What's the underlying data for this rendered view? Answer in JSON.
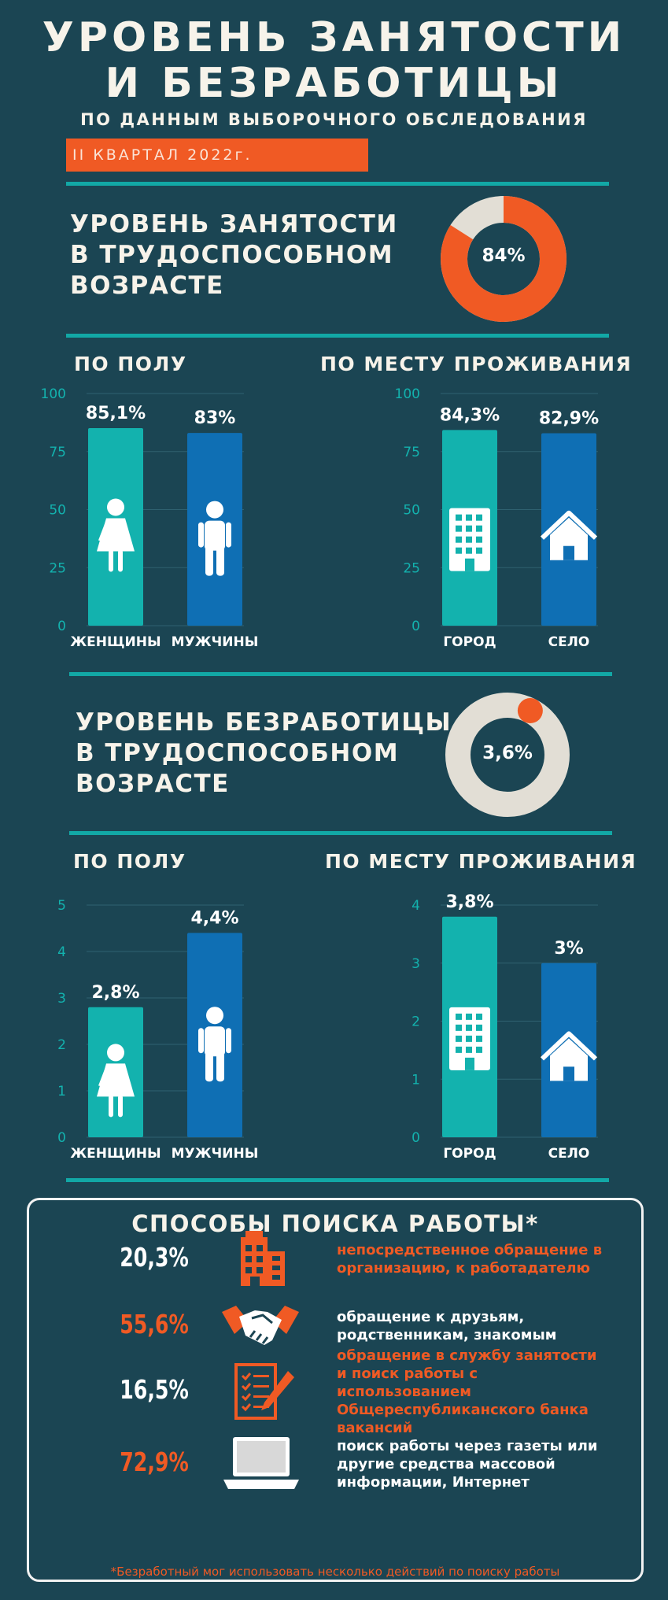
{
  "header": {
    "title_line1": "УРОВЕНЬ ЗАНЯТОСТИ",
    "title_line2": "И БЕЗРАБОТИЦЫ",
    "subtitle": "ПО ДАННЫМ ВЫБОРОЧНОГО ОБСЛЕДОВАНИЯ",
    "period": "II КВАРТАЛ 2022г."
  },
  "employment": {
    "heading": [
      "УРОВЕНЬ ЗАНЯТОСТИ",
      "В ТРУДОСПОСОБНОМ",
      "ВОЗРАСТЕ"
    ],
    "donut_value": 84,
    "donut_label": "84%"
  },
  "unemployment": {
    "heading": [
      "УРОВЕНЬ БЕЗРАБОТИЦЫ",
      "В ТРУДОСПОСОБНОМ",
      "ВОЗРАСТЕ"
    ],
    "donut_value": 3.6,
    "donut_label": "3,6%"
  },
  "labels": {
    "by_gender": "ПО ПОЛУ",
    "by_residence": "ПО МЕСТУ ПРОЖИВАНИЯ"
  },
  "colors": {
    "teal": "#13b2ae",
    "blue": "#0f6fb4",
    "orange": "#f05a24",
    "donut_track": "#e2ded5",
    "rule": "#12a8a6"
  },
  "chart_data": [
    {
      "type": "bar",
      "id": "emp_gender",
      "categories": [
        "ЖЕНЩИНЫ",
        "МУЖЧИНЫ"
      ],
      "values": [
        85.1,
        83
      ],
      "data_labels": [
        "85,1%",
        "83%"
      ],
      "icons": [
        "woman-icon",
        "man-icon"
      ],
      "ylim": [
        0,
        100
      ],
      "yticks": [
        0,
        25,
        50,
        75,
        100
      ],
      "grid": true
    },
    {
      "type": "bar",
      "id": "emp_residence",
      "categories": [
        "ГОРОД",
        "СЕЛО"
      ],
      "values": [
        84.3,
        82.9
      ],
      "data_labels": [
        "84,3%",
        "82,9%"
      ],
      "icons": [
        "building-icon",
        "house-icon"
      ],
      "ylim": [
        0,
        100
      ],
      "yticks": [
        0,
        25,
        50,
        75,
        100
      ],
      "grid": true
    },
    {
      "type": "bar",
      "id": "unemp_gender",
      "categories": [
        "ЖЕНЩИНЫ",
        "МУЖЧИНЫ"
      ],
      "values": [
        2.8,
        4.4
      ],
      "data_labels": [
        "2,8%",
        "4,4%"
      ],
      "icons": [
        "woman-icon",
        "man-icon"
      ],
      "ylim": [
        0,
        5
      ],
      "yticks": [
        0,
        1,
        2,
        3,
        4,
        5
      ],
      "grid": true
    },
    {
      "type": "bar",
      "id": "unemp_residence",
      "categories": [
        "ГОРОД",
        "СЕЛО"
      ],
      "values": [
        3.8,
        3
      ],
      "data_labels": [
        "3,8%",
        "3%"
      ],
      "icons": [
        "building-icon",
        "house-icon"
      ],
      "ylim": [
        0,
        4
      ],
      "yticks": [
        0,
        1,
        2,
        3,
        4
      ],
      "grid": true
    }
  ],
  "job_search": {
    "title": "СПОСОБЫ ПОИСКА РАБОТЫ*",
    "methods": [
      {
        "value": "20,3%",
        "text": "непосредственное обращение в организацию, к работадателю",
        "icon": "office-building-icon",
        "highlight": false
      },
      {
        "value": "55,6%",
        "text": "обращение к друзьям, родственникам, знакомым",
        "icon": "handshake-icon",
        "highlight": true
      },
      {
        "value": "16,5%",
        "text": "обращение в службу занятости и поиск работы с использованием Общереспубликанского банка вакансий",
        "icon": "form-pen-icon",
        "highlight": false
      },
      {
        "value": "72,9%",
        "text": "поиск работы через газеты или другие средства массовой информации, Интернет",
        "icon": "laptop-icon",
        "highlight": true
      }
    ],
    "footnote": "*Безработный мог использовать несколько действий по поиску работы"
  }
}
